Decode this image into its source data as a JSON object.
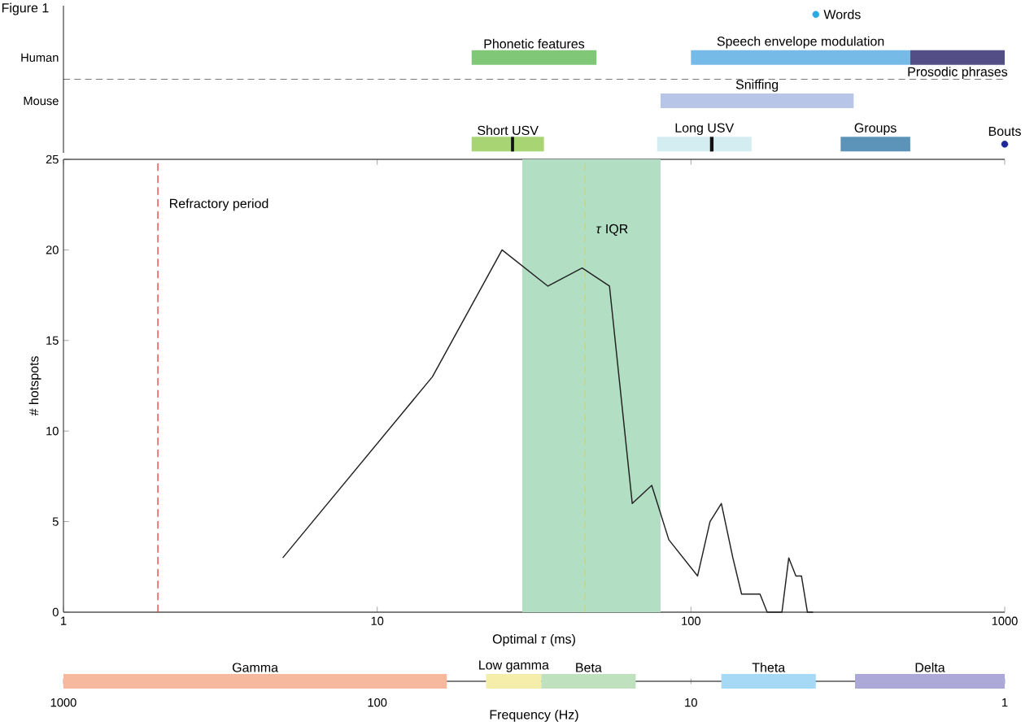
{
  "chart_data": [
    {
      "type": "bar",
      "orientation": "horizontal",
      "title": "Figure 1",
      "categories": [
        null,
        "Human",
        "Mouse",
        null
      ],
      "log": "x",
      "xlim": [
        1,
        1000
      ],
      "tick_labels": "y",
      "series": [
        {
          "name": "Phonetic features",
          "color": "#80c878",
          "base": [
            null,
            20,
            null,
            null
          ],
          "values": [
            null,
            30,
            null,
            null
          ]
        },
        {
          "name": "Speech envelope modulation",
          "color": "#76bae8",
          "base": [
            null,
            100,
            null,
            null
          ],
          "values": [
            null,
            400,
            null,
            null
          ]
        },
        {
          "name": "Prosodic phrases",
          "color": "#534e86",
          "base": [
            null,
            500,
            null,
            null
          ],
          "values": [
            null,
            500,
            null,
            null
          ]
        },
        {
          "name": "Sniffing",
          "color": "#b7c6e8",
          "base": [
            null,
            null,
            80,
            null
          ],
          "values": [
            null,
            null,
            250,
            null
          ]
        },
        {
          "name": "Short USV",
          "color": "#a8d474",
          "base": [
            null,
            null,
            null,
            20
          ],
          "values": [
            null,
            null,
            null,
            14
          ]
        },
        {
          "name": "Long USV",
          "color": "#d3edf1",
          "base": [
            null,
            null,
            null,
            78
          ],
          "values": [
            null,
            null,
            null,
            78
          ]
        },
        {
          "name": "Groups",
          "color": "#5c94b9",
          "base": [
            null,
            null,
            null,
            300
          ],
          "values": [
            null,
            null,
            null,
            200
          ]
        },
        {
          "type": "scatter",
          "name": "Words",
          "color": "#2aa8e2",
          "values": [
            250,
            null,
            null,
            null
          ]
        },
        {
          "type": "scatter",
          "name": "Bouts",
          "color": "#1f2897",
          "values": [
            null,
            null,
            null,
            1000
          ]
        },
        {
          "color": "#111111",
          "base": [
            null,
            null,
            null,
            26.7
          ],
          "values": [
            null,
            null,
            null,
            0.6
          ]
        },
        {
          "color": "#111111",
          "base": [
            null,
            null,
            null,
            115
          ],
          "values": [
            null,
            null,
            null,
            3
          ]
        }
      ]
    },
    {
      "type": "line",
      "xlabel": "Optimal *τ* (ms)",
      "ylabel": "# hotspots",
      "log": "x",
      "xlim": [
        1,
        1000
      ],
      "xticks": [
        1,
        10,
        100,
        1000
      ],
      "ylim": [
        0,
        25
      ],
      "yticks": [
        0,
        5,
        10,
        15,
        20,
        25
      ],
      "color": "#222222",
      "x": [
        5,
        15,
        25,
        35,
        45,
        55,
        65,
        75,
        85,
        105,
        115,
        125,
        136,
        145,
        166,
        175,
        195,
        205,
        216,
        225,
        235,
        245
      ],
      "values": [
        3,
        13,
        20,
        18,
        19,
        18,
        6,
        7,
        4,
        2,
        5,
        6,
        3,
        1,
        1,
        0,
        0,
        3,
        2,
        2,
        0,
        0
      ],
      "ref_lines": [
        {
          "axis": "x",
          "value": 2,
          "label": "Refractory period",
          "color": "#e8423c",
          "line_style": "dashed"
        },
        {
          "axis": "x",
          "value": 46,
          "color": "#cad967",
          "line_style": "dashed"
        }
      ],
      "bands": [
        {
          "axis": "x",
          "from": 29,
          "to": 80,
          "label": "*τ* IQR",
          "color": "#b2dec3"
        }
      ]
    },
    {
      "type": "bar",
      "orientation": "horizontal",
      "categories": [
        null
      ],
      "log": "x",
      "xlim": [
        1000,
        1
      ],
      "xticks": [
        1000,
        100,
        10,
        1
      ],
      "xlabel": "Frequency (Hz)",
      "series": [
        {
          "name": "Gamma",
          "color": "#f6b99d",
          "base": [
            60
          ],
          "values": [
            940
          ]
        },
        {
          "name": "Low gamma",
          "color": "#f5eeaa",
          "base": [
            30
          ],
          "values": [
            15
          ]
        },
        {
          "name": "Beta",
          "color": "#c0e1bd",
          "base": [
            15
          ],
          "values": [
            15
          ]
        },
        {
          "name": "Theta",
          "color": "#a6d9f5",
          "base": [
            4
          ],
          "values": [
            4
          ]
        },
        {
          "name": "Delta",
          "color": "#aca8d7",
          "base": [
            1
          ],
          "values": [
            2
          ]
        }
      ]
    }
  ]
}
